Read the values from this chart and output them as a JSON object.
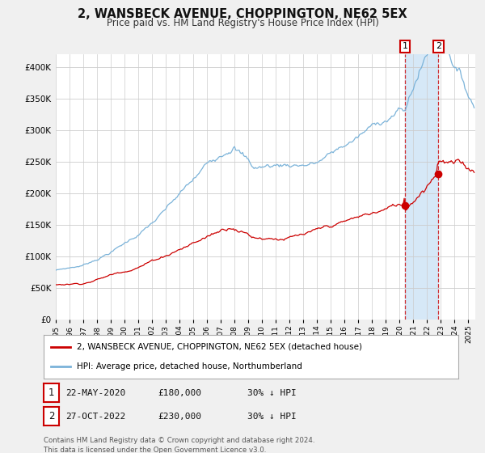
{
  "title": "2, WANSBECK AVENUE, CHOPPINGTON, NE62 5EX",
  "subtitle": "Price paid vs. HM Land Registry's House Price Index (HPI)",
  "hpi_label": "HPI: Average price, detached house, Northumberland",
  "price_label": "2, WANSBECK AVENUE, CHOPPINGTON, NE62 5EX (detached house)",
  "sale1_date": "22-MAY-2020",
  "sale1_price": 180000,
  "sale1_pct": "30% ↓ HPI",
  "sale2_date": "27-OCT-2022",
  "sale2_price": 230000,
  "sale2_pct": "30% ↓ HPI",
  "footer": "Contains HM Land Registry data © Crown copyright and database right 2024.\nThis data is licensed under the Open Government Licence v3.0.",
  "hpi_color": "#7bb3d9",
  "price_color": "#cc0000",
  "bg_color": "#f0f0f0",
  "plot_bg": "#ffffff",
  "shade_color": "#d6e8f7",
  "grid_color": "#cccccc",
  "ylim": [
    0,
    420000
  ],
  "yticks": [
    0,
    50000,
    100000,
    150000,
    200000,
    250000,
    300000,
    350000,
    400000
  ],
  "start_year": 1995,
  "end_year": 2025
}
